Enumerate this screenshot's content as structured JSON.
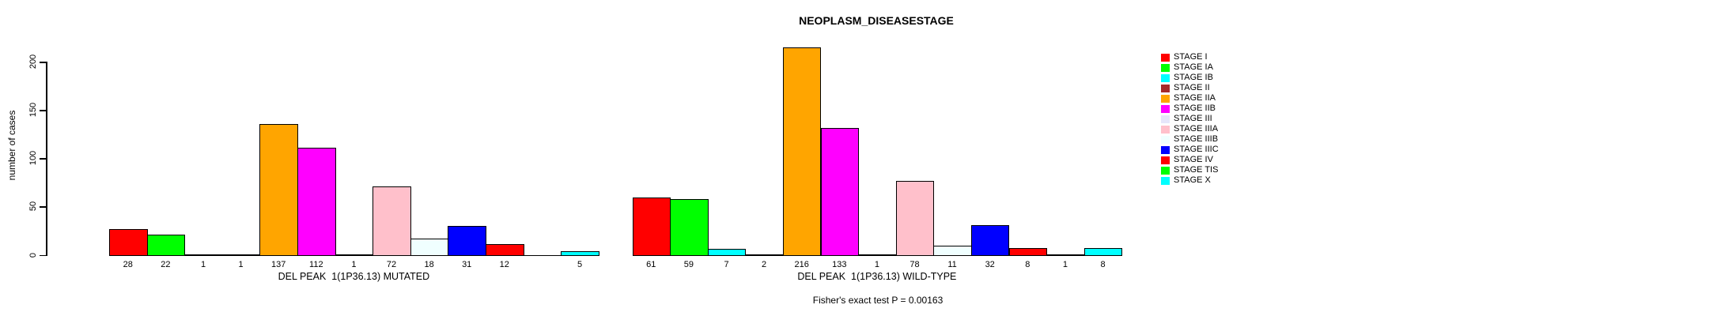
{
  "title": "NEOPLASM_DISEASESTAGE",
  "chart_data": {
    "type": "bar",
    "title": "NEOPLASM_DISEASESTAGE",
    "ylabel": "number of cases",
    "xlabel": "",
    "ylim": [
      0,
      220
    ],
    "yticks": [
      0,
      50,
      100,
      150,
      200
    ],
    "grid": false,
    "legend_position": "right",
    "categories": [
      "STAGE I",
      "STAGE IA",
      "STAGE IB",
      "STAGE II",
      "STAGE IIA",
      "STAGE IIB",
      "STAGE III",
      "STAGE IIIA",
      "STAGE IIIB",
      "STAGE IIIC",
      "STAGE IV",
      "STAGE TIS",
      "STAGE X"
    ],
    "colors": [
      "#FF0000",
      "#00FF00",
      "#00FFFF",
      "#A52A2A",
      "#FFA500",
      "#FF00FF",
      "#E6E6FA",
      "#FFC0CB",
      "#F0FFFF",
      "#0000FF",
      "#FF0000",
      "#00FF00",
      "#00FFFF"
    ],
    "series": [
      {
        "name": "DEL PEAK  1(1P36.13) MUTATED",
        "values": [
          28,
          22,
          1,
          1,
          137,
          112,
          1,
          72,
          18,
          31,
          12,
          null,
          5
        ]
      },
      {
        "name": "DEL PEAK  1(1P36.13) WILD-TYPE",
        "values": [
          61,
          59,
          7,
          2,
          216,
          133,
          1,
          78,
          11,
          32,
          8,
          1,
          8
        ]
      }
    ],
    "annotation": "Fisher's exact test P = 0.00163"
  }
}
